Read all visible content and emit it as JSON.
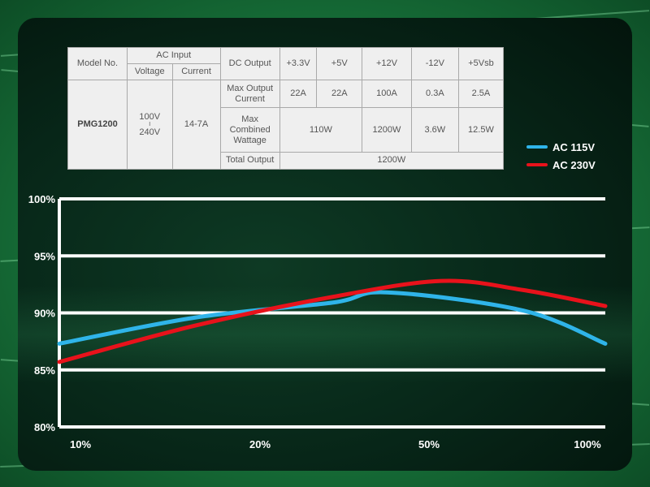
{
  "spec_table": {
    "model_no_label": "Model No.",
    "ac_input_label": "AC Input",
    "voltage_label": "Voltage",
    "current_label": "Current",
    "dc_output_label": "DC Output",
    "rails": [
      "+3.3V",
      "+5V",
      "+12V",
      "-12V",
      "+5Vsb"
    ],
    "model": "PMG1200",
    "voltage_low": "100V",
    "voltage_high": "240V",
    "current": "14-7A",
    "max_output_current_label": "Max Output Current",
    "max_output_current": [
      "22A",
      "22A",
      "100A",
      "0.3A",
      "2.5A"
    ],
    "max_combined_label": "Max Combined Wattage",
    "max_combined_33_5": "110W",
    "max_combined_12": "1200W",
    "max_combined_m12": "3.6W",
    "max_combined_5sb": "12.5W",
    "total_output_label": "Total Output",
    "total_output": "1200W"
  },
  "chart_data": {
    "type": "line",
    "categories": [
      "10%",
      "20%",
      "50%",
      "100%"
    ],
    "y_ticks": [
      "100%",
      "95%",
      "90%",
      "85%",
      "80%"
    ],
    "ylim": [
      80,
      100
    ],
    "grid": true,
    "legend_position": "top-right",
    "series": [
      {
        "name": "AC 115V",
        "color": "#2fb4e9",
        "x": [
          0,
          0.25,
          0.5,
          0.6,
          0.85,
          1.0
        ],
        "values": [
          87.3,
          89.6,
          90.9,
          91.8,
          90.2,
          87.3
        ]
      },
      {
        "name": "AC 230V",
        "color": "#e8121b",
        "x": [
          0,
          0.25,
          0.5,
          0.7,
          0.85,
          1.0
        ],
        "values": [
          85.7,
          88.9,
          91.4,
          92.8,
          92.0,
          90.6
        ]
      }
    ]
  }
}
